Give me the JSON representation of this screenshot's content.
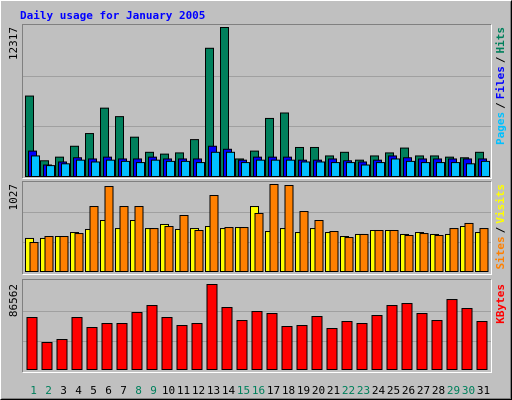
{
  "title": "Daily usage for January 2005",
  "legend_separator": "/",
  "chart_data": [
    {
      "type": "bar",
      "ylim": [
        0,
        12317
      ],
      "yticks": [
        12317
      ],
      "series": [
        {
          "name": "Pages",
          "color": "#00c0ff",
          "values": [
            1700,
            900,
            1050,
            1350,
            1200,
            1350,
            1250,
            1150,
            1350,
            1250,
            1250,
            1150,
            2000,
            2000,
            1150,
            1350,
            1350,
            1350,
            1200,
            1200,
            1150,
            1150,
            950,
            1150,
            1450,
            1250,
            1150,
            1150,
            1150,
            1050,
            1250
          ]
        },
        {
          "name": "Files",
          "color": "#0000ff",
          "values": [
            2100,
            950,
            1200,
            1550,
            1450,
            1600,
            1450,
            1450,
            1600,
            1450,
            1450,
            1450,
            2500,
            2250,
            1350,
            1600,
            1600,
            1600,
            1350,
            1350,
            1450,
            1300,
            1200,
            1350,
            1700,
            1550,
            1450,
            1450,
            1450,
            1450,
            1450
          ]
        },
        {
          "name": "Hits",
          "color": "#00805c",
          "values": [
            6650,
            1300,
            1600,
            2500,
            3550,
            5650,
            4950,
            3250,
            2000,
            1850,
            1950,
            3050,
            10600,
            12317,
            1450,
            2100,
            4800,
            5250,
            2400,
            2400,
            1700,
            2000,
            1350,
            1700,
            1950,
            2350,
            1700,
            1700,
            1600,
            1550,
            2000
          ]
        }
      ]
    },
    {
      "type": "bar",
      "ylim": [
        0,
        1027
      ],
      "yticks": [
        1027
      ],
      "series": [
        {
          "name": "Sites",
          "color": "#ff8000",
          "values": [
            342,
            413,
            413,
            448,
            767,
            1003,
            767,
            767,
            507,
            531,
            661,
            484,
            897,
            519,
            519,
            685,
            1027,
            1015,
            708,
            602,
            472,
            401,
            437,
            484,
            484,
            425,
            448,
            425,
            507,
            567,
            507
          ]
        },
        {
          "name": "Visits",
          "color": "#ffff00",
          "values": [
            390,
            390,
            413,
            460,
            496,
            602,
            507,
            602,
            507,
            555,
            496,
            507,
            531,
            507,
            519,
            767,
            472,
            507,
            460,
            507,
            460,
            413,
            437,
            484,
            484,
            437,
            460,
            437,
            437,
            531,
            460
          ]
        }
      ]
    },
    {
      "type": "bar",
      "ylim": [
        0,
        86562
      ],
      "yticks": [
        86562
      ],
      "categories": [
        "1",
        "2",
        "3",
        "4",
        "5",
        "6",
        "7",
        "8",
        "9",
        "10",
        "11",
        "12",
        "13",
        "14",
        "15",
        "16",
        "17",
        "18",
        "19",
        "20",
        "21",
        "22",
        "23",
        "24",
        "25",
        "26",
        "27",
        "28",
        "29",
        "30",
        "31"
      ],
      "label_colors": [
        "#00805c",
        "#00805c",
        "#000000",
        "#000000",
        "#000000",
        "#000000",
        "#000000",
        "#00805c",
        "#00805c",
        "#000000",
        "#000000",
        "#000000",
        "#000000",
        "#000000",
        "#00805c",
        "#00805c",
        "#000000",
        "#000000",
        "#000000",
        "#000000",
        "#000000",
        "#00805c",
        "#00805c",
        "#000000",
        "#000000",
        "#000000",
        "#000000",
        "#000000",
        "#00805c",
        "#00805c",
        "#000000"
      ],
      "series": [
        {
          "name": "KBytes",
          "color": "#ff0000",
          "values": [
            52940,
            27490,
            30540,
            52940,
            42760,
            46830,
            46830,
            58030,
            65150,
            52940,
            44790,
            46830,
            86562,
            63120,
            49880,
            59050,
            57010,
            43780,
            44790,
            53960,
            41740,
            48870,
            46830,
            54980,
            65150,
            67190,
            57010,
            49880,
            71260,
            62100,
            48870
          ]
        }
      ]
    }
  ]
}
